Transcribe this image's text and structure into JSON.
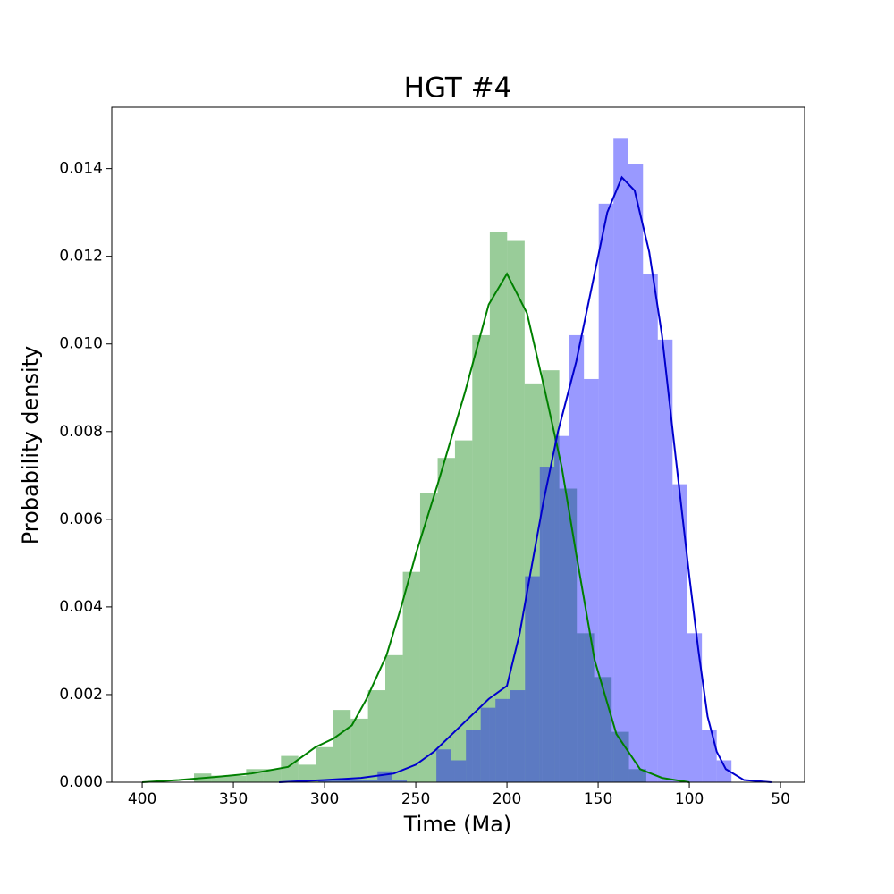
{
  "chart_data": {
    "type": "histogram",
    "title": "HGT #4",
    "xlabel": "Time (Ma)",
    "ylabel": "Probability density",
    "xlim": [
      416.7,
      36.8
    ],
    "ylim": [
      0,
      0.0154
    ],
    "xticks": [
      400,
      350,
      300,
      250,
      200,
      150,
      100,
      50
    ],
    "yticks": [
      {
        "value": 0,
        "label": "0.000"
      },
      {
        "value": 0.002,
        "label": "0.002"
      },
      {
        "value": 0.004,
        "label": "0.004"
      },
      {
        "value": 0.006,
        "label": "0.006"
      },
      {
        "value": 0.008,
        "label": "0.008"
      },
      {
        "value": 0.01,
        "label": "0.010"
      },
      {
        "value": 0.012,
        "label": "0.012"
      },
      {
        "value": 0.014,
        "label": "0.014"
      }
    ],
    "histograms": [
      {
        "color": "#008000",
        "bins": [
          371.6,
          362.1,
          352.5,
          343.0,
          333.4,
          323.9,
          314.4,
          304.8,
          295.3,
          285.7,
          276.2,
          266.7,
          257.1,
          247.6,
          238.0,
          228.5,
          219.0,
          209.4,
          199.9,
          190.3,
          180.8,
          171.3,
          161.7,
          152.2,
          142.6,
          133.1,
          123.6
        ],
        "counts": [
          0.0002,
          0.00015,
          0.00015,
          0.0003,
          0.0003,
          0.0006,
          0.0004,
          0.0008,
          0.00165,
          0.00145,
          0.0021,
          0.0029,
          0.0048,
          0.0066,
          0.0074,
          0.0078,
          0.0102,
          0.01255,
          0.01235,
          0.0091,
          0.0094,
          0.0067,
          0.0034,
          0.0024,
          0.00115,
          0.0003
        ]
      },
      {
        "color": "#0000ff",
        "bins": [
          303.4,
          295.3,
          287.2,
          279.1,
          271.0,
          262.9,
          254.9,
          246.8,
          238.7,
          230.6,
          222.5,
          214.4,
          206.3,
          198.2,
          190.1,
          182.0,
          174.0,
          165.9,
          157.8,
          149.7,
          141.6,
          133.5,
          125.4,
          117.3,
          109.2,
          101.1,
          93.1,
          85.0,
          76.9
        ],
        "counts": [
          5e-05,
          5e-05,
          5e-05,
          5e-05,
          0.00025,
          5e-05,
          0,
          0,
          0.00075,
          0.0005,
          0.0012,
          0.0017,
          0.0019,
          0.0021,
          0.0047,
          0.0072,
          0.0079,
          0.0102,
          0.0092,
          0.0132,
          0.0147,
          0.0141,
          0.0116,
          0.0101,
          0.0068,
          0.0034,
          0.0012,
          0.0005
        ]
      }
    ],
    "kde": [
      {
        "color": "#008000",
        "x": [
          400,
          380,
          360,
          340,
          320,
          305,
          295,
          285,
          277,
          266,
          258,
          250,
          238,
          223,
          210,
          200,
          189,
          179,
          170,
          162,
          152,
          140,
          127,
          115,
          100
        ],
        "values": [
          0,
          5e-05,
          0.00012,
          0.0002,
          0.00035,
          0.0008,
          0.001,
          0.0013,
          0.0019,
          0.0029,
          0.004,
          0.0052,
          0.0068,
          0.0089,
          0.0109,
          0.0116,
          0.0107,
          0.0089,
          0.0072,
          0.0052,
          0.0028,
          0.0011,
          0.0003,
          0.0001,
          0
        ]
      },
      {
        "color": "#0000cd",
        "x": [
          325,
          300,
          280,
          262,
          250,
          240,
          230,
          220,
          210,
          200,
          193,
          187,
          180,
          172,
          162,
          152,
          145,
          137,
          130,
          122,
          115,
          108,
          100,
          95,
          90,
          85,
          80,
          70,
          55
        ],
        "values": [
          0,
          5e-05,
          0.0001,
          0.0002,
          0.0004,
          0.0007,
          0.0011,
          0.0015,
          0.0019,
          0.0022,
          0.0034,
          0.0048,
          0.0064,
          0.008,
          0.0096,
          0.0116,
          0.013,
          0.0138,
          0.0135,
          0.0121,
          0.0102,
          0.0076,
          0.0047,
          0.003,
          0.0015,
          0.0007,
          0.0003,
          5e-05,
          0
        ]
      }
    ]
  }
}
